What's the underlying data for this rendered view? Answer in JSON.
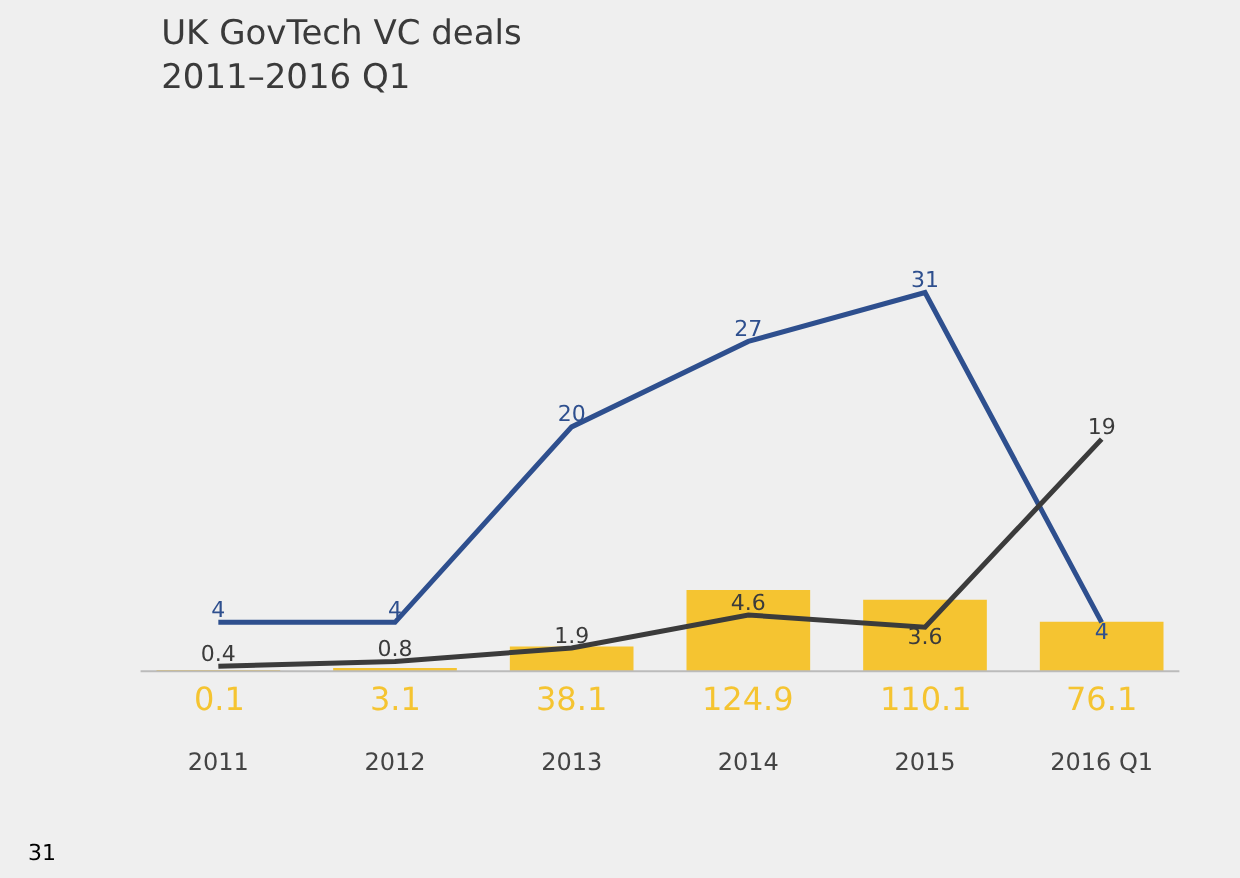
{
  "chart_data": {
    "type": "bar",
    "title": "UK GovTech VC deals\n2011–2016 Q1",
    "categories": [
      "2011",
      "2012",
      "2013",
      "2014",
      "2015",
      "2016 Q1"
    ],
    "series": [
      {
        "color": "#f5c431",
        "values": [
          0.1,
          3.1,
          38.1,
          124.9,
          110.1,
          76.1
        ]
      },
      {
        "type": "line",
        "axis": "y2",
        "color": "#2e4f8e",
        "values": [
          4,
          4,
          20,
          27,
          31,
          4
        ]
      },
      {
        "type": "line",
        "axis": "y2",
        "color": "#3b3b3b",
        "values": [
          0.4,
          0.8,
          1.9,
          4.6,
          3.6,
          19
        ]
      }
    ],
    "tick_labels": "x",
    "data_labels": true,
    "annotations": [
      "31"
    ]
  }
}
